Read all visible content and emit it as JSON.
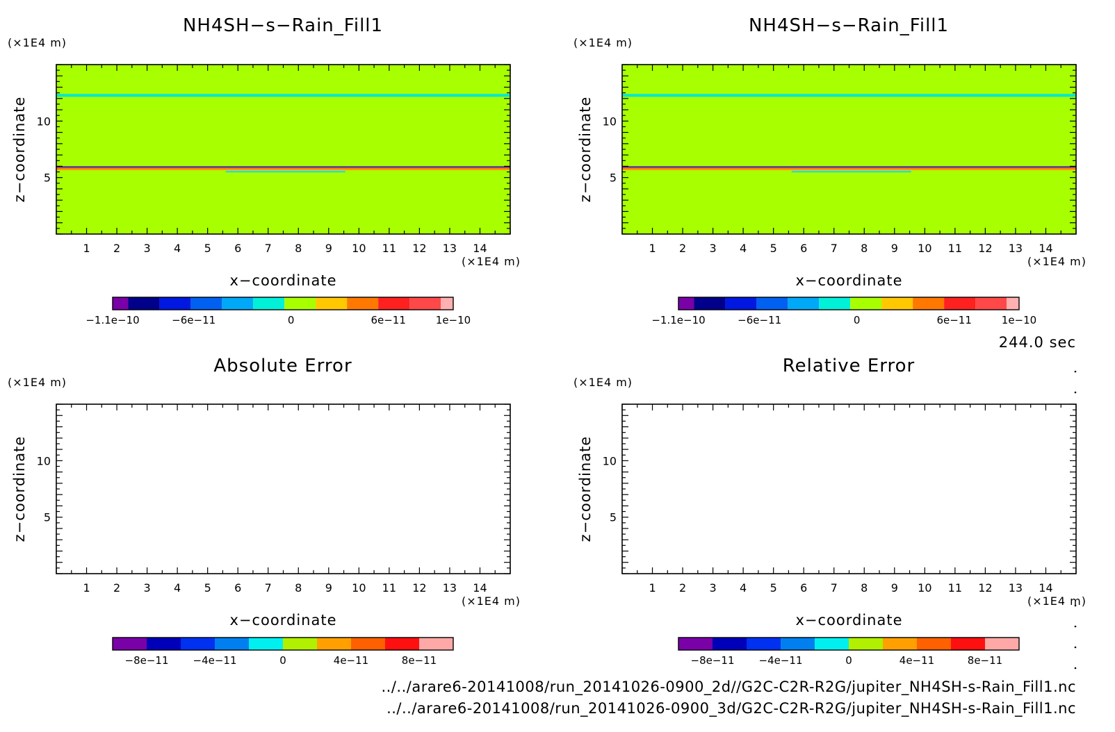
{
  "time_label": "244.0 sec",
  "file_paths": [
    "../../arare6-20141008/run_20141026-0900_2d//G2C-C2R-R2G/jupiter_NH4SH-s-Rain_Fill1.nc",
    "../../arare6-20141008/run_20141026-0900_3d/G2C-C2R-R2G/jupiter_NH4SH-s-Rain_Fill1.nc"
  ],
  "colors": {
    "field_fill": "#a8ff00",
    "top_band": "#00e8d0",
    "mid_band_dark": "#1030c0",
    "mid_band_red": "#ff3a3a",
    "mid_band_orange": "#ff9a00",
    "mid_band_cyan": "#30d8d8"
  },
  "chart_data": [
    {
      "type": "heatmap",
      "title": "NH4SH−s−Rain_Fill1",
      "xlabel": "x−coordinate",
      "ylabel": "z−coordinate",
      "x_unit": "(×1E4 m)",
      "z_unit": "(×1E4 m)",
      "xlim": [
        0,
        15
      ],
      "zlim": [
        0,
        15
      ],
      "x_ticks": [
        "1",
        "2",
        "3",
        "4",
        "5",
        "6",
        "7",
        "8",
        "9",
        "10",
        "11",
        "12",
        "13",
        "14"
      ],
      "z_ticks": [
        "5",
        "10"
      ],
      "field": {
        "background_value": 0,
        "bands": [
          {
            "z_range": [
              12.15,
              12.4
            ],
            "x_range": [
              0,
              15
            ],
            "color": "#00e8d0"
          },
          {
            "z_range": [
              5.9,
              6.0
            ],
            "x_range": [
              0,
              15
            ],
            "color": "#1030c0"
          },
          {
            "z_range": [
              5.8,
              5.9
            ],
            "x_range": [
              0,
              15
            ],
            "color": "#ff3a3a"
          },
          {
            "z_range": [
              5.65,
              5.8
            ],
            "x_range": [
              0,
              15
            ],
            "color": "#ff9a00"
          },
          {
            "z_range": [
              5.45,
              5.6
            ],
            "x_range": [
              5.6,
              9.55
            ],
            "color": "#30d8d8"
          }
        ]
      },
      "colorbar": {
        "colors": [
          "#7a00a8",
          "#00008a",
          "#0018e0",
          "#0060f0",
          "#00a8f8",
          "#00f0d8",
          "#a8ff00",
          "#ffc800",
          "#ff7800",
          "#ff2020",
          "#ff4848",
          "#ffb0b0"
        ],
        "widths": [
          0.5,
          1,
          1,
          1,
          1,
          1,
          1,
          1,
          1,
          1,
          1,
          0.4
        ],
        "labels": [
          {
            "text": "−1.1e−10",
            "value": -1.1e-10
          },
          {
            "text": "−6e−11",
            "value": -6e-11
          },
          {
            "text": "0",
            "value": 0
          },
          {
            "text": "6e−11",
            "value": 6e-11
          },
          {
            "text": "1e−10",
            "value": 1e-10
          }
        ],
        "range": [
          -1.1e-10,
          1e-10
        ]
      }
    },
    {
      "type": "heatmap",
      "title": "NH4SH−s−Rain_Fill1",
      "xlabel": "x−coordinate",
      "ylabel": "z−coordinate",
      "x_unit": "(×1E4 m)",
      "z_unit": "(×1E4 m)",
      "xlim": [
        0,
        15
      ],
      "zlim": [
        0,
        15
      ],
      "x_ticks": [
        "1",
        "2",
        "3",
        "4",
        "5",
        "6",
        "7",
        "8",
        "9",
        "10",
        "11",
        "12",
        "13",
        "14"
      ],
      "z_ticks": [
        "5",
        "10"
      ],
      "field": {
        "background_value": 0,
        "bands": [
          {
            "z_range": [
              12.15,
              12.4
            ],
            "x_range": [
              0,
              15
            ],
            "color": "#00e8d0"
          },
          {
            "z_range": [
              5.9,
              6.0
            ],
            "x_range": [
              0,
              15
            ],
            "color": "#1030c0"
          },
          {
            "z_range": [
              5.8,
              5.9
            ],
            "x_range": [
              0,
              15
            ],
            "color": "#ff3a3a"
          },
          {
            "z_range": [
              5.65,
              5.8
            ],
            "x_range": [
              0,
              15
            ],
            "color": "#ff9a00"
          },
          {
            "z_range": [
              5.45,
              5.6
            ],
            "x_range": [
              5.6,
              9.55
            ],
            "color": "#30d8d8"
          }
        ]
      },
      "colorbar": {
        "colors": [
          "#7a00a8",
          "#00008a",
          "#0018e0",
          "#0060f0",
          "#00a8f8",
          "#00f0d8",
          "#a8ff00",
          "#ffc800",
          "#ff7800",
          "#ff2020",
          "#ff4848",
          "#ffb0b0"
        ],
        "widths": [
          0.5,
          1,
          1,
          1,
          1,
          1,
          1,
          1,
          1,
          1,
          1,
          0.4
        ],
        "labels": [
          {
            "text": "−1.1e−10",
            "value": -1.1e-10
          },
          {
            "text": "−6e−11",
            "value": -6e-11
          },
          {
            "text": "0",
            "value": 0
          },
          {
            "text": "6e−11",
            "value": 6e-11
          },
          {
            "text": "1e−10",
            "value": 1e-10
          }
        ],
        "range": [
          -1.1e-10,
          1e-10
        ]
      }
    },
    {
      "type": "heatmap",
      "title": "Absolute Error",
      "xlabel": "x−coordinate",
      "ylabel": "z−coordinate",
      "x_unit": "(×1E4 m)",
      "z_unit": "(×1E4 m)",
      "xlim": [
        0,
        15
      ],
      "zlim": [
        0,
        15
      ],
      "x_ticks": [
        "1",
        "2",
        "3",
        "4",
        "5",
        "6",
        "7",
        "8",
        "9",
        "10",
        "11",
        "12",
        "13",
        "14"
      ],
      "z_ticks": [
        "5",
        "10"
      ],
      "field": null,
      "colorbar": {
        "colors": [
          "#7a00a8",
          "#0000b8",
          "#0030f0",
          "#0080f0",
          "#00f0f0",
          "#b0f000",
          "#ffa000",
          "#ff6000",
          "#ff1010",
          "#ffa8a8"
        ],
        "widths": [
          1,
          1,
          1,
          1,
          1,
          1,
          1,
          1,
          1,
          1
        ],
        "labels": [
          {
            "text": "−8e−11",
            "value": -8e-11
          },
          {
            "text": "−4e−11",
            "value": -4e-11
          },
          {
            "text": "0",
            "value": 0
          },
          {
            "text": "4e−11",
            "value": 4e-11
          },
          {
            "text": "8e−11",
            "value": 8e-11
          }
        ],
        "range": [
          -1e-10,
          1e-10
        ]
      }
    },
    {
      "type": "heatmap",
      "title": "Relative Error",
      "xlabel": "x−coordinate",
      "ylabel": "z−coordinate",
      "x_unit": "(×1E4 m)",
      "z_unit": "(×1E4 m)",
      "xlim": [
        0,
        15
      ],
      "zlim": [
        0,
        15
      ],
      "x_ticks": [
        "1",
        "2",
        "3",
        "4",
        "5",
        "6",
        "7",
        "8",
        "9",
        "10",
        "11",
        "12",
        "13",
        "14"
      ],
      "z_ticks": [
        "5",
        "10"
      ],
      "field": null,
      "colorbar": {
        "colors": [
          "#7a00a8",
          "#0000b8",
          "#0030f0",
          "#0080f0",
          "#00f0f0",
          "#b0f000",
          "#ffa000",
          "#ff6000",
          "#ff1010",
          "#ffa8a8"
        ],
        "widths": [
          1,
          1,
          1,
          1,
          1,
          1,
          1,
          1,
          1,
          1
        ],
        "labels": [
          {
            "text": "−8e−11",
            "value": -8e-11
          },
          {
            "text": "−4e−11",
            "value": -4e-11
          },
          {
            "text": "0",
            "value": 0
          },
          {
            "text": "4e−11",
            "value": 4e-11
          },
          {
            "text": "8e−11",
            "value": 8e-11
          }
        ],
        "range": [
          -1e-10,
          1e-10
        ]
      }
    }
  ]
}
